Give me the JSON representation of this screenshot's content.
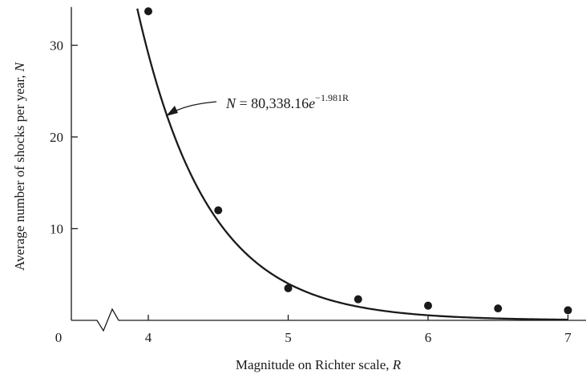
{
  "chart_data": {
    "type": "scatter",
    "title": "",
    "xlabel": "Magnitude on Richter scale, R",
    "ylabel": "Average number of shocks per year, N",
    "x_ticks": [
      4,
      5,
      6,
      7
    ],
    "y_ticks": [
      10,
      20,
      30
    ],
    "origin_label": "0",
    "xlim": [
      3.5,
      7.15
    ],
    "ylim": [
      0,
      34
    ],
    "x_axis_break": true,
    "grid": false,
    "series": [
      {
        "type": "scatter",
        "points": [
          {
            "x": 4.0,
            "y": 33.7
          },
          {
            "x": 4.5,
            "y": 12.0
          },
          {
            "x": 5.0,
            "y": 3.5
          },
          {
            "x": 5.5,
            "y": 2.3
          },
          {
            "x": 6.0,
            "y": 1.6
          },
          {
            "x": 6.5,
            "y": 1.3
          },
          {
            "x": 7.0,
            "y": 1.1
          }
        ]
      },
      {
        "type": "line",
        "model": "exponential",
        "coefficient": 80338.16,
        "rate": -1.981
      }
    ],
    "annotation": {
      "lhs": "N = 80,338.16",
      "base": "e",
      "exponent": "−1.981R"
    },
    "colors": {
      "ink": "#1a1a1a",
      "background": "#ffffff"
    }
  }
}
